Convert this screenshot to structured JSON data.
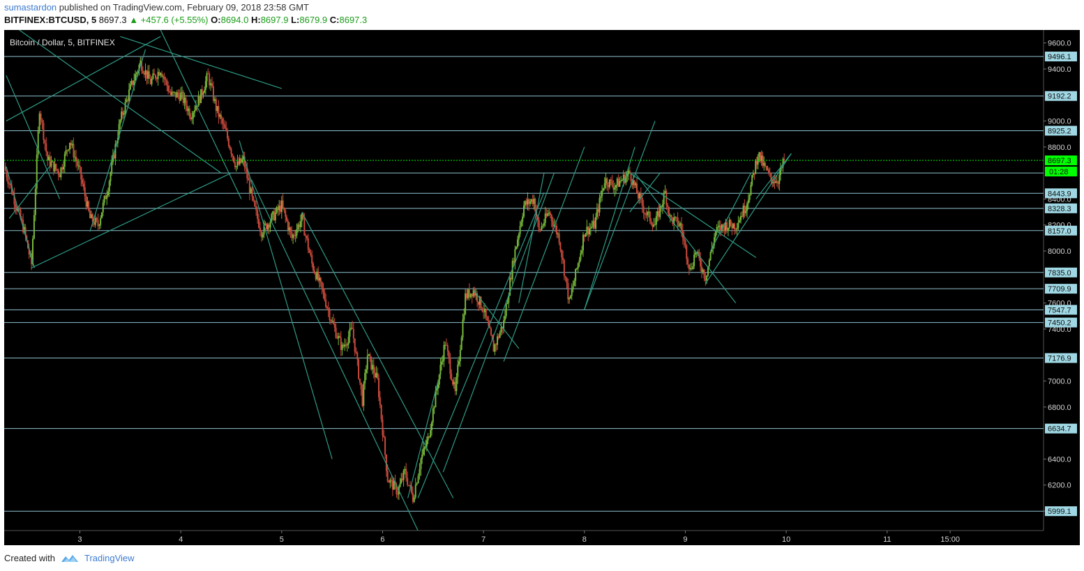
{
  "header": {
    "author": "sumastardon",
    "published_text": " published on TradingView.com, February 09, 2018 23:58 GMT",
    "symbol": "BITFINEX:BTCUSD, 5",
    "last": "8697.3",
    "change": "▲ +457.6 (+5.55%)",
    "o_label": "O:",
    "o_value": "8694.0",
    "h_label": "H:",
    "h_value": "8697.9",
    "l_label": "L:",
    "l_value": "8679.9",
    "c_label": "C:",
    "c_value": "8697.3"
  },
  "footer": {
    "created_with": "Created with",
    "brand": "TradingView"
  },
  "chart_data": {
    "type": "line",
    "title": "Bitcoin / Dollar, 5, BITFINEX",
    "xlabel": "",
    "ylabel": "",
    "ylim": [
      5850,
      9700
    ],
    "grid": false,
    "y_ticks": [
      6000,
      6200,
      6400,
      6600,
      6800,
      7000,
      7200,
      7400,
      7600,
      7800,
      8000,
      8200,
      8400,
      8600,
      8800,
      9000,
      9200,
      9400,
      9600
    ],
    "y_tick_labels_visible": [
      "6000.0",
      "6200.0",
      "6400.0",
      "6800.0",
      "7000.0",
      "7400.0",
      "7600.0",
      "8000.0",
      "8200.0",
      "8400.0",
      "8800.0",
      "9000.0",
      "9400.0",
      "9600.0"
    ],
    "x_ticks": [
      {
        "x": 3,
        "label": "3"
      },
      {
        "x": 4,
        "label": "4"
      },
      {
        "x": 5,
        "label": "5"
      },
      {
        "x": 6,
        "label": "6"
      },
      {
        "x": 7,
        "label": "7"
      },
      {
        "x": 8,
        "label": "8"
      },
      {
        "x": 9,
        "label": "9"
      },
      {
        "x": 10,
        "label": "10"
      },
      {
        "x": 11,
        "label": "11"
      },
      {
        "x": 11.625,
        "label": "15:00"
      }
    ],
    "xlim": [
      2.25,
      12.55
    ],
    "current_price": 8697.3,
    "current_price_label": "8697.3",
    "countdown_label": "01:28",
    "horizontal_levels": [
      9496.1,
      9192.2,
      8925.2,
      8443.9,
      8328.3,
      8157.0,
      7835.0,
      7709.9,
      7547.7,
      7450.2,
      7176.9,
      6634.7,
      5999.1
    ],
    "horizontal_level_labels": [
      "9496.1",
      "9192.2",
      "8925.2",
      "8443.9",
      "8328.3",
      "8157.0",
      "7835.0",
      "7709.9",
      "7547.7",
      "7450.2",
      "7176.9",
      "6634.7",
      "5999.1"
    ],
    "extra_level": 8600,
    "series": [
      {
        "x": [
          2.25,
          2.35,
          2.45,
          2.52,
          2.6,
          2.68,
          2.8,
          2.9,
          3.0,
          3.1,
          3.18,
          3.28,
          3.4,
          3.5,
          3.6,
          3.7,
          3.8,
          3.9,
          4.0,
          4.1,
          4.2,
          4.27,
          4.35,
          4.45,
          4.55,
          4.62,
          4.72,
          4.8,
          4.9,
          5.0,
          5.1,
          5.2,
          5.3,
          5.4,
          5.5,
          5.6,
          5.7,
          5.8,
          5.85,
          5.95,
          6.05,
          6.15,
          6.22,
          6.3,
          6.38,
          6.45,
          6.55,
          6.62,
          6.72,
          6.82,
          6.9,
          7.0,
          7.1,
          7.2,
          7.3,
          7.4,
          7.5,
          7.55,
          7.65,
          7.75,
          7.85,
          7.95,
          8.0,
          8.1,
          8.2,
          8.3,
          8.45,
          8.52,
          8.6,
          8.7,
          8.8,
          8.85,
          8.95,
          9.05,
          9.1,
          9.2,
          9.3,
          9.4,
          9.5,
          9.6,
          9.65,
          9.72,
          9.78,
          9.85,
          9.92,
          9.98
        ],
        "y": [
          8650,
          8400,
          8150,
          7900,
          9100,
          8700,
          8600,
          8850,
          8600,
          8250,
          8200,
          8500,
          9000,
          9250,
          9450,
          9300,
          9400,
          9200,
          9200,
          9050,
          9200,
          9350,
          9100,
          8900,
          8650,
          8700,
          8350,
          8150,
          8250,
          8350,
          8100,
          8250,
          7900,
          7700,
          7450,
          7250,
          7400,
          6850,
          7200,
          7000,
          6250,
          6150,
          6300,
          6100,
          6400,
          6550,
          7000,
          7300,
          6900,
          7650,
          7700,
          7550,
          7250,
          7450,
          7950,
          8350,
          8400,
          8150,
          8300,
          8100,
          7600,
          7950,
          8150,
          8200,
          8550,
          8500,
          8600,
          8450,
          8300,
          8200,
          8450,
          8250,
          8200,
          7850,
          8000,
          7800,
          8150,
          8200,
          8200,
          8350,
          8500,
          8750,
          8650,
          8550,
          8550,
          8697.3
        ]
      }
    ],
    "colors": {
      "background": "#000000",
      "candle_up": "#77b83a",
      "candle_down": "#cc4b3c",
      "level_line": "#8fc3d0",
      "level_label_bg": "#9fd8e4",
      "trend_line": "#2e9c86",
      "current_price": "#00ff00"
    },
    "trendlines": [
      {
        "x1": 2.27,
        "y1": 9350,
        "x2": 2.8,
        "y2": 8400
      },
      {
        "x1": 2.27,
        "y1": 8650,
        "x2": 2.55,
        "y2": 7870
      },
      {
        "x1": 2.52,
        "y1": 7870,
        "x2": 4.5,
        "y2": 8600
      },
      {
        "x1": 2.3,
        "y1": 8250,
        "x2": 2.7,
        "y2": 8650
      },
      {
        "x1": 2.27,
        "y1": 9000,
        "x2": 3.8,
        "y2": 9650
      },
      {
        "x1": 2.4,
        "y1": 9700,
        "x2": 4.4,
        "y2": 8600
      },
      {
        "x1": 3.1,
        "y1": 8150,
        "x2": 3.65,
        "y2": 9550
      },
      {
        "x1": 3.4,
        "y1": 9650,
        "x2": 5.0,
        "y2": 9250
      },
      {
        "x1": 3.8,
        "y1": 9700,
        "x2": 4.6,
        "y2": 8400
      },
      {
        "x1": 4.58,
        "y1": 8850,
        "x2": 5.5,
        "y2": 6400
      },
      {
        "x1": 4.7,
        "y1": 8550,
        "x2": 6.35,
        "y2": 5850
      },
      {
        "x1": 5.2,
        "y1": 8300,
        "x2": 6.7,
        "y2": 6100
      },
      {
        "x1": 6.25,
        "y1": 6100,
        "x2": 6.55,
        "y2": 7000
      },
      {
        "x1": 6.35,
        "y1": 6100,
        "x2": 7.6,
        "y2": 8450
      },
      {
        "x1": 6.6,
        "y1": 6300,
        "x2": 7.7,
        "y2": 8600
      },
      {
        "x1": 6.9,
        "y1": 7700,
        "x2": 7.35,
        "y2": 7250
      },
      {
        "x1": 7.2,
        "y1": 7150,
        "x2": 8.0,
        "y2": 8800
      },
      {
        "x1": 7.35,
        "y1": 7600,
        "x2": 7.6,
        "y2": 8600
      },
      {
        "x1": 8.0,
        "y1": 7550,
        "x2": 8.5,
        "y2": 8800
      },
      {
        "x1": 8.0,
        "y1": 7550,
        "x2": 8.7,
        "y2": 9000
      },
      {
        "x1": 8.45,
        "y1": 8600,
        "x2": 9.7,
        "y2": 7950
      },
      {
        "x1": 8.45,
        "y1": 8300,
        "x2": 8.75,
        "y2": 8600
      },
      {
        "x1": 8.5,
        "y1": 8600,
        "x2": 9.5,
        "y2": 7600
      },
      {
        "x1": 9.2,
        "y1": 7750,
        "x2": 10.05,
        "y2": 8750
      },
      {
        "x1": 9.25,
        "y1": 8000,
        "x2": 9.65,
        "y2": 8600
      },
      {
        "x1": 9.7,
        "y1": 8400,
        "x2": 10.05,
        "y2": 8750
      }
    ]
  }
}
